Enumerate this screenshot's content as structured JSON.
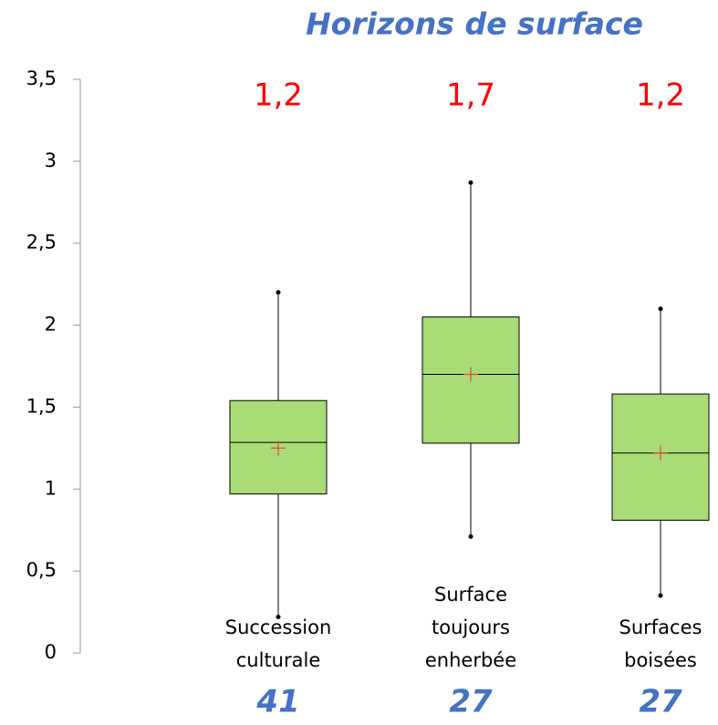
{
  "chart_data": {
    "type": "box",
    "title": "Horizons de surface",
    "categories": [
      [
        "Succession",
        "culturale"
      ],
      [
        "Surface",
        "toujours",
        "enherbée"
      ],
      [
        "Surfaces",
        "boisées"
      ]
    ],
    "min": [
      0.22,
      0.71,
      0.35
    ],
    "q1": [
      0.97,
      1.28,
      0.81
    ],
    "median": [
      1.285,
      1.7,
      1.22
    ],
    "q3": [
      1.54,
      2.05,
      1.58
    ],
    "max": [
      2.2,
      2.87,
      2.1
    ],
    "mean": [
      1.25,
      1.7,
      1.22
    ],
    "annotations": [
      "1,2",
      "1,7",
      "1,2"
    ],
    "counts": [
      41,
      27,
      27
    ],
    "color": "#a9dc76",
    "mean_color": "#e8483a",
    "ylim": [
      0,
      3.5
    ],
    "yticks": [
      0,
      {
        "value": 0.5,
        "label": "0,5"
      },
      1,
      {
        "value": 1.5,
        "label": "1,5"
      },
      2,
      {
        "value": 2.5,
        "label": "2,5"
      },
      3,
      {
        "value": 3.5,
        "label": "3,5"
      }
    ]
  }
}
